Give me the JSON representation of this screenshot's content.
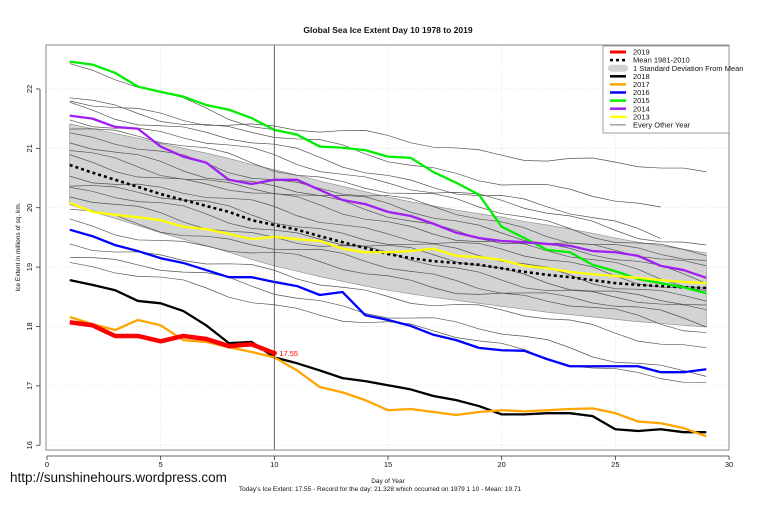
{
  "url_caption": "http://sunshinehours.wordpress.com",
  "footer": "Today's Ice Extent: 17.55 - Record for the day: 21.328 which occurred on 1979 1 10 - Mean: 19.71",
  "chart_data": {
    "type": "line",
    "title": "Global Sea Ice Extent Day 10 1978 to 2019",
    "xlabel": "Day of Year",
    "ylabel": "Ice Extent in millions of sq. km.",
    "xlim": [
      0,
      30
    ],
    "ylim": [
      15.92,
      22.74
    ],
    "xticks": [
      0,
      5,
      10,
      15,
      20,
      25,
      30
    ],
    "yticks": [
      16,
      17,
      18,
      19,
      20,
      21,
      22
    ],
    "grid": true,
    "vline_day": 10,
    "annotation": {
      "day": 10,
      "value": 17.55,
      "text": "17.55",
      "color": "#ff0000"
    },
    "legend_position": "top-right",
    "legend": [
      {
        "label": "2019",
        "color": "#ff0000",
        "style": "thick"
      },
      {
        "label": "Mean 1981-2010",
        "color": "#000000",
        "style": "dashed"
      },
      {
        "label": "1 Standard Deviation From Mean",
        "color": "#d3d3d3",
        "style": "band"
      },
      {
        "label": "2018",
        "color": "#000000",
        "style": "solid"
      },
      {
        "label": "2017",
        "color": "#ffa500",
        "style": "solid"
      },
      {
        "label": "2016",
        "color": "#0000ff",
        "style": "solid"
      },
      {
        "label": "2015",
        "color": "#00ee00",
        "style": "solid"
      },
      {
        "label": "2014",
        "color": "#a020f0",
        "style": "solid"
      },
      {
        "label": "2013",
        "color": "#ffff00",
        "style": "solid"
      },
      {
        "label": "Every Other Year",
        "color": "#555555",
        "style": "thin"
      }
    ],
    "days": [
      1,
      2,
      3,
      4,
      5,
      6,
      7,
      8,
      9,
      10,
      11,
      12,
      13,
      14,
      15,
      16,
      17,
      18,
      19,
      20,
      21,
      22,
      23,
      24,
      25,
      26,
      27,
      28,
      29
    ],
    "band": {
      "upper": [
        21.41,
        21.33,
        21.25,
        21.17,
        21.08,
        21.0,
        20.92,
        20.83,
        20.73,
        20.64,
        20.55,
        20.45,
        20.36,
        20.27,
        20.18,
        20.1,
        20.03,
        19.96,
        19.9,
        19.84,
        19.77,
        19.71,
        19.64,
        19.57,
        19.49,
        19.42,
        19.36,
        19.3,
        19.24
      ],
      "lower": [
        20.05,
        19.93,
        19.82,
        19.7,
        19.58,
        19.47,
        19.36,
        19.25,
        19.13,
        19.02,
        18.93,
        18.84,
        18.76,
        18.68,
        18.61,
        18.55,
        18.49,
        18.44,
        18.39,
        18.34,
        18.29,
        18.24,
        18.2,
        18.16,
        18.12,
        18.08,
        18.05,
        18.02,
        17.99
      ]
    },
    "series": [
      {
        "name": "Mean 1981-2010",
        "color": "#000000",
        "style": "dashed",
        "values": [
          20.72,
          20.59,
          20.47,
          20.35,
          20.23,
          20.13,
          20.03,
          19.93,
          19.79,
          19.71,
          19.63,
          19.52,
          19.42,
          19.32,
          19.22,
          19.15,
          19.1,
          19.07,
          19.04,
          18.98,
          18.92,
          18.87,
          18.83,
          18.78,
          18.73,
          18.7,
          18.68,
          18.66,
          18.65
        ]
      },
      {
        "name": "2018",
        "color": "#000000",
        "style": "solid",
        "values": [
          18.78,
          18.7,
          18.61,
          18.43,
          18.39,
          18.26,
          18.02,
          17.72,
          17.74,
          17.48,
          17.38,
          17.26,
          17.13,
          17.08,
          17.01,
          16.94,
          16.83,
          16.76,
          16.66,
          16.52,
          16.52,
          16.54,
          16.54,
          16.49,
          16.27,
          16.24,
          16.27,
          16.22,
          16.22
        ]
      },
      {
        "name": "2017",
        "color": "#ffa500",
        "style": "solid",
        "values": [
          18.16,
          18.04,
          17.94,
          18.11,
          18.02,
          17.77,
          17.74,
          17.65,
          17.57,
          17.48,
          17.26,
          16.98,
          16.89,
          16.76,
          16.59,
          16.61,
          16.56,
          16.51,
          16.56,
          16.59,
          16.57,
          16.59,
          16.61,
          16.62,
          16.54,
          16.4,
          16.37,
          16.29,
          16.15
        ]
      },
      {
        "name": "2016",
        "color": "#0000ff",
        "style": "solid",
        "values": [
          19.63,
          19.52,
          19.37,
          19.27,
          19.15,
          19.07,
          18.95,
          18.83,
          18.83,
          18.75,
          18.68,
          18.53,
          18.58,
          18.19,
          18.11,
          18.01,
          17.86,
          17.77,
          17.64,
          17.6,
          17.59,
          17.45,
          17.33,
          17.33,
          17.33,
          17.33,
          17.23,
          17.23,
          17.28
        ]
      },
      {
        "name": "2015",
        "color": "#00ee00",
        "style": "solid",
        "values": [
          22.46,
          22.41,
          22.27,
          22.04,
          21.95,
          21.87,
          21.73,
          21.65,
          21.51,
          21.31,
          21.23,
          21.03,
          21.01,
          20.97,
          20.86,
          20.84,
          20.6,
          20.42,
          20.22,
          19.68,
          19.49,
          19.29,
          19.25,
          19.04,
          18.93,
          18.8,
          18.73,
          18.66,
          18.56
        ]
      },
      {
        "name": "2014",
        "color": "#a020f0",
        "style": "solid",
        "values": [
          21.55,
          21.5,
          21.36,
          21.33,
          21.03,
          20.86,
          20.76,
          20.47,
          20.4,
          20.47,
          20.47,
          20.3,
          20.13,
          20.06,
          19.93,
          19.86,
          19.73,
          19.58,
          19.49,
          19.44,
          19.42,
          19.39,
          19.36,
          19.27,
          19.25,
          19.19,
          19.02,
          18.95,
          18.82
        ]
      },
      {
        "name": "2013",
        "color": "#ffff00",
        "style": "solid",
        "values": [
          20.08,
          19.93,
          19.88,
          19.84,
          19.79,
          19.68,
          19.64,
          19.56,
          19.47,
          19.51,
          19.47,
          19.44,
          19.31,
          19.25,
          19.25,
          19.27,
          19.31,
          19.19,
          19.17,
          19.12,
          19.02,
          18.98,
          18.92,
          18.88,
          18.85,
          18.82,
          18.78,
          18.75,
          18.73
        ]
      },
      {
        "name": "2019",
        "color": "#ff0000",
        "style": "thick",
        "values": [
          18.07,
          18.02,
          17.84,
          17.84,
          17.75,
          17.84,
          17.79,
          17.67,
          17.7,
          17.55
        ]
      }
    ],
    "other_years": [
      {
        "start": 22.35,
        "end": 21.35,
        "days_end": 10
      },
      {
        "start": 21.75,
        "end": 20.55,
        "days_end": 29
      },
      {
        "start": 21.85,
        "end": 19.95,
        "days_end": 27
      },
      {
        "start": 21.75,
        "end": 19.55,
        "days_end": 27
      },
      {
        "start": 21.55,
        "end": 19.35,
        "days_end": 29
      },
      {
        "start": 21.4,
        "end": 19.2,
        "days_end": 29
      },
      {
        "start": 21.2,
        "end": 19.05,
        "days_end": 29
      },
      {
        "start": 21.05,
        "end": 18.95,
        "days_end": 29
      },
      {
        "start": 20.95,
        "end": 18.8,
        "days_end": 29
      },
      {
        "start": 20.85,
        "end": 18.7,
        "days_end": 29
      },
      {
        "start": 20.6,
        "end": 18.6,
        "days_end": 29
      },
      {
        "start": 20.45,
        "end": 18.45,
        "days_end": 29
      },
      {
        "start": 20.3,
        "end": 18.3,
        "days_end": 29
      },
      {
        "start": 20.15,
        "end": 18.2,
        "days_end": 29
      },
      {
        "start": 19.95,
        "end": 18.05,
        "days_end": 29
      },
      {
        "start": 19.75,
        "end": 17.95,
        "days_end": 29
      },
      {
        "start": 19.45,
        "end": 17.65,
        "days_end": 29
      },
      {
        "start": 19.25,
        "end": 17.2,
        "days_end": 29
      },
      {
        "start": 19.05,
        "end": 17.0,
        "days_end": 29
      }
    ]
  }
}
